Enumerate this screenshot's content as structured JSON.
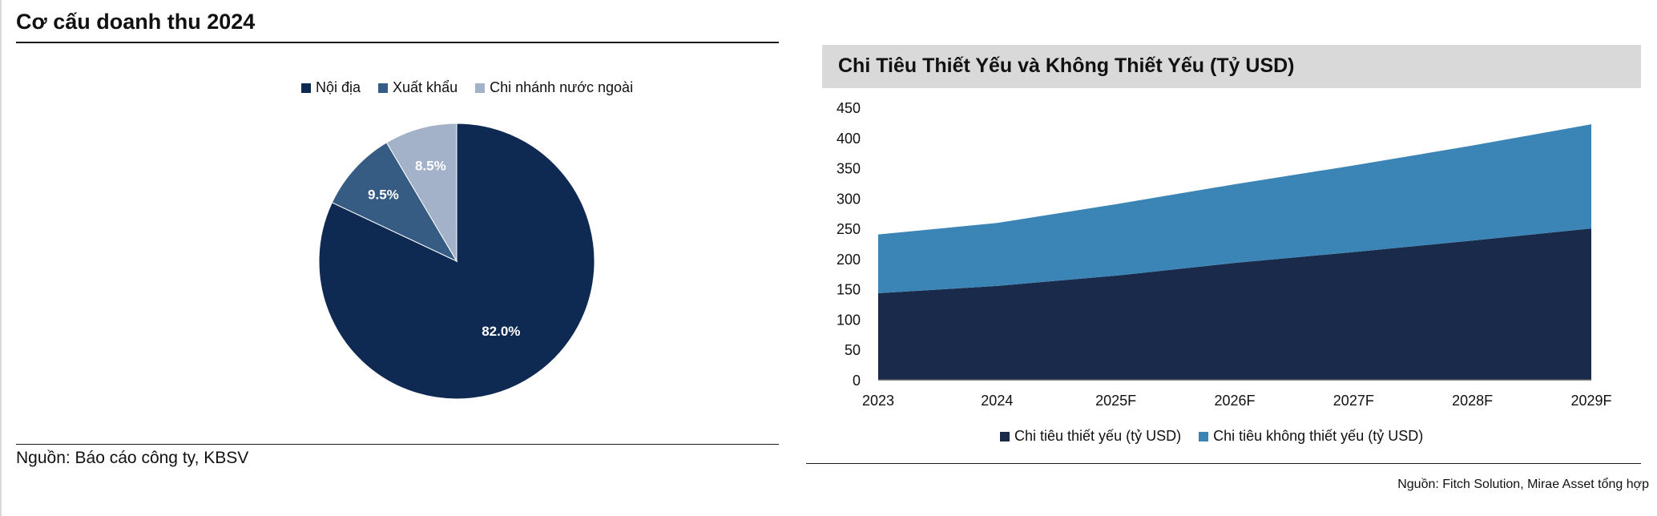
{
  "left": {
    "title": "Cơ cấu doanh thu 2024",
    "source": "Nguồn: Báo cáo công ty, KBSV"
  },
  "right": {
    "source": "Nguồn: Fitch Solution, Mirae Asset tổng hợp"
  },
  "chart_data": [
    {
      "type": "pie",
      "title": "Cơ cấu doanh thu 2024",
      "legend_position": "top",
      "slices": [
        {
          "label": "Nội địa",
          "value": 82.0,
          "value_label": "82.0%",
          "color": "#0f2a52"
        },
        {
          "label": "Xuất khẩu",
          "value": 9.5,
          "value_label": "9.5%",
          "color": "#365c84"
        },
        {
          "label": "Chi nhánh nước ngoài",
          "value": 8.5,
          "value_label": "8.5%",
          "color": "#a3b2c9"
        }
      ]
    },
    {
      "type": "area",
      "stacked": true,
      "title": "Chi Tiêu Thiết Yếu và Không Thiết Yếu (Tỷ USD)",
      "legend_position": "bottom",
      "categories": [
        "2023",
        "2024",
        "2025F",
        "2026F",
        "2027F",
        "2028F",
        "2029F"
      ],
      "series": [
        {
          "name": "Chi tiêu thiết yếu (tỷ USD)",
          "values": [
            143,
            155,
            172,
            193,
            211,
            230,
            250
          ],
          "color": "#1a2a4a"
        },
        {
          "name": "Chi tiêu không thiết yếu (tỷ USD)",
          "values": [
            97,
            104,
            118,
            130,
            143,
            157,
            172
          ],
          "color": "#3b85b6"
        }
      ],
      "ylim": [
        0,
        450
      ],
      "yticks": [
        "0",
        "50",
        "100",
        "150",
        "200",
        "250",
        "300",
        "350",
        "400",
        "450"
      ]
    }
  ]
}
